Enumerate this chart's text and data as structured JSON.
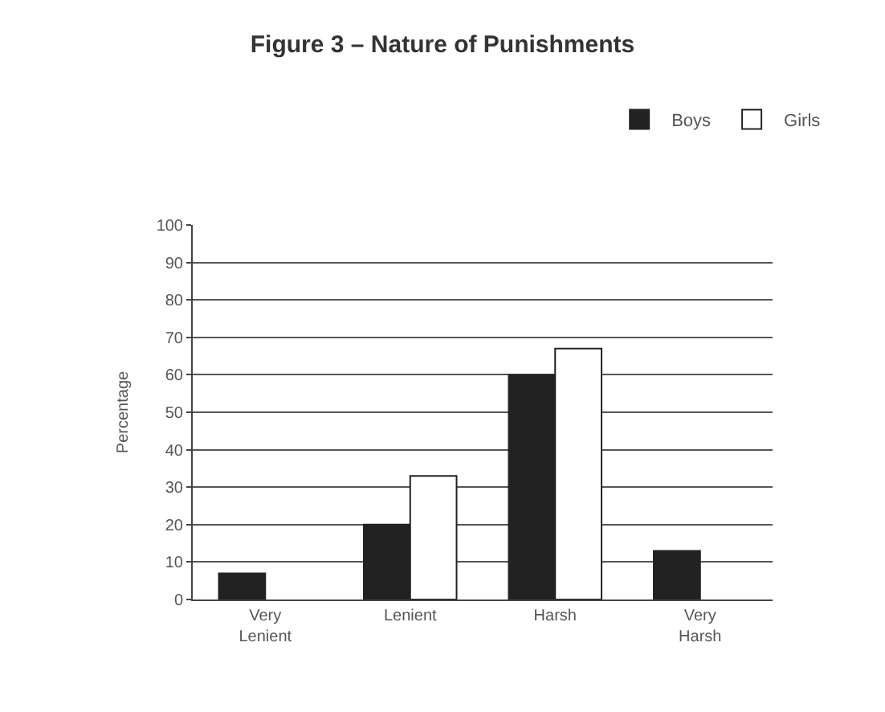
{
  "chart_data": {
    "type": "bar",
    "title": "Figure 3 – Nature of Punishments",
    "ylabel": "Percentage",
    "categories": [
      "Very Lenient",
      "Lenient",
      "Harsh",
      "Very Harsh"
    ],
    "series": [
      {
        "name": "Boys",
        "color": "#222222",
        "values": [
          7,
          20,
          60,
          13
        ]
      },
      {
        "name": "Girls",
        "color": "#ffffff",
        "values": [
          null,
          33,
          67,
          null
        ]
      }
    ],
    "ylim": [
      0,
      100
    ],
    "yticks": [
      0,
      10,
      20,
      30,
      40,
      50,
      60,
      70,
      80,
      90,
      100
    ],
    "grid": "y",
    "legend": "top right"
  }
}
